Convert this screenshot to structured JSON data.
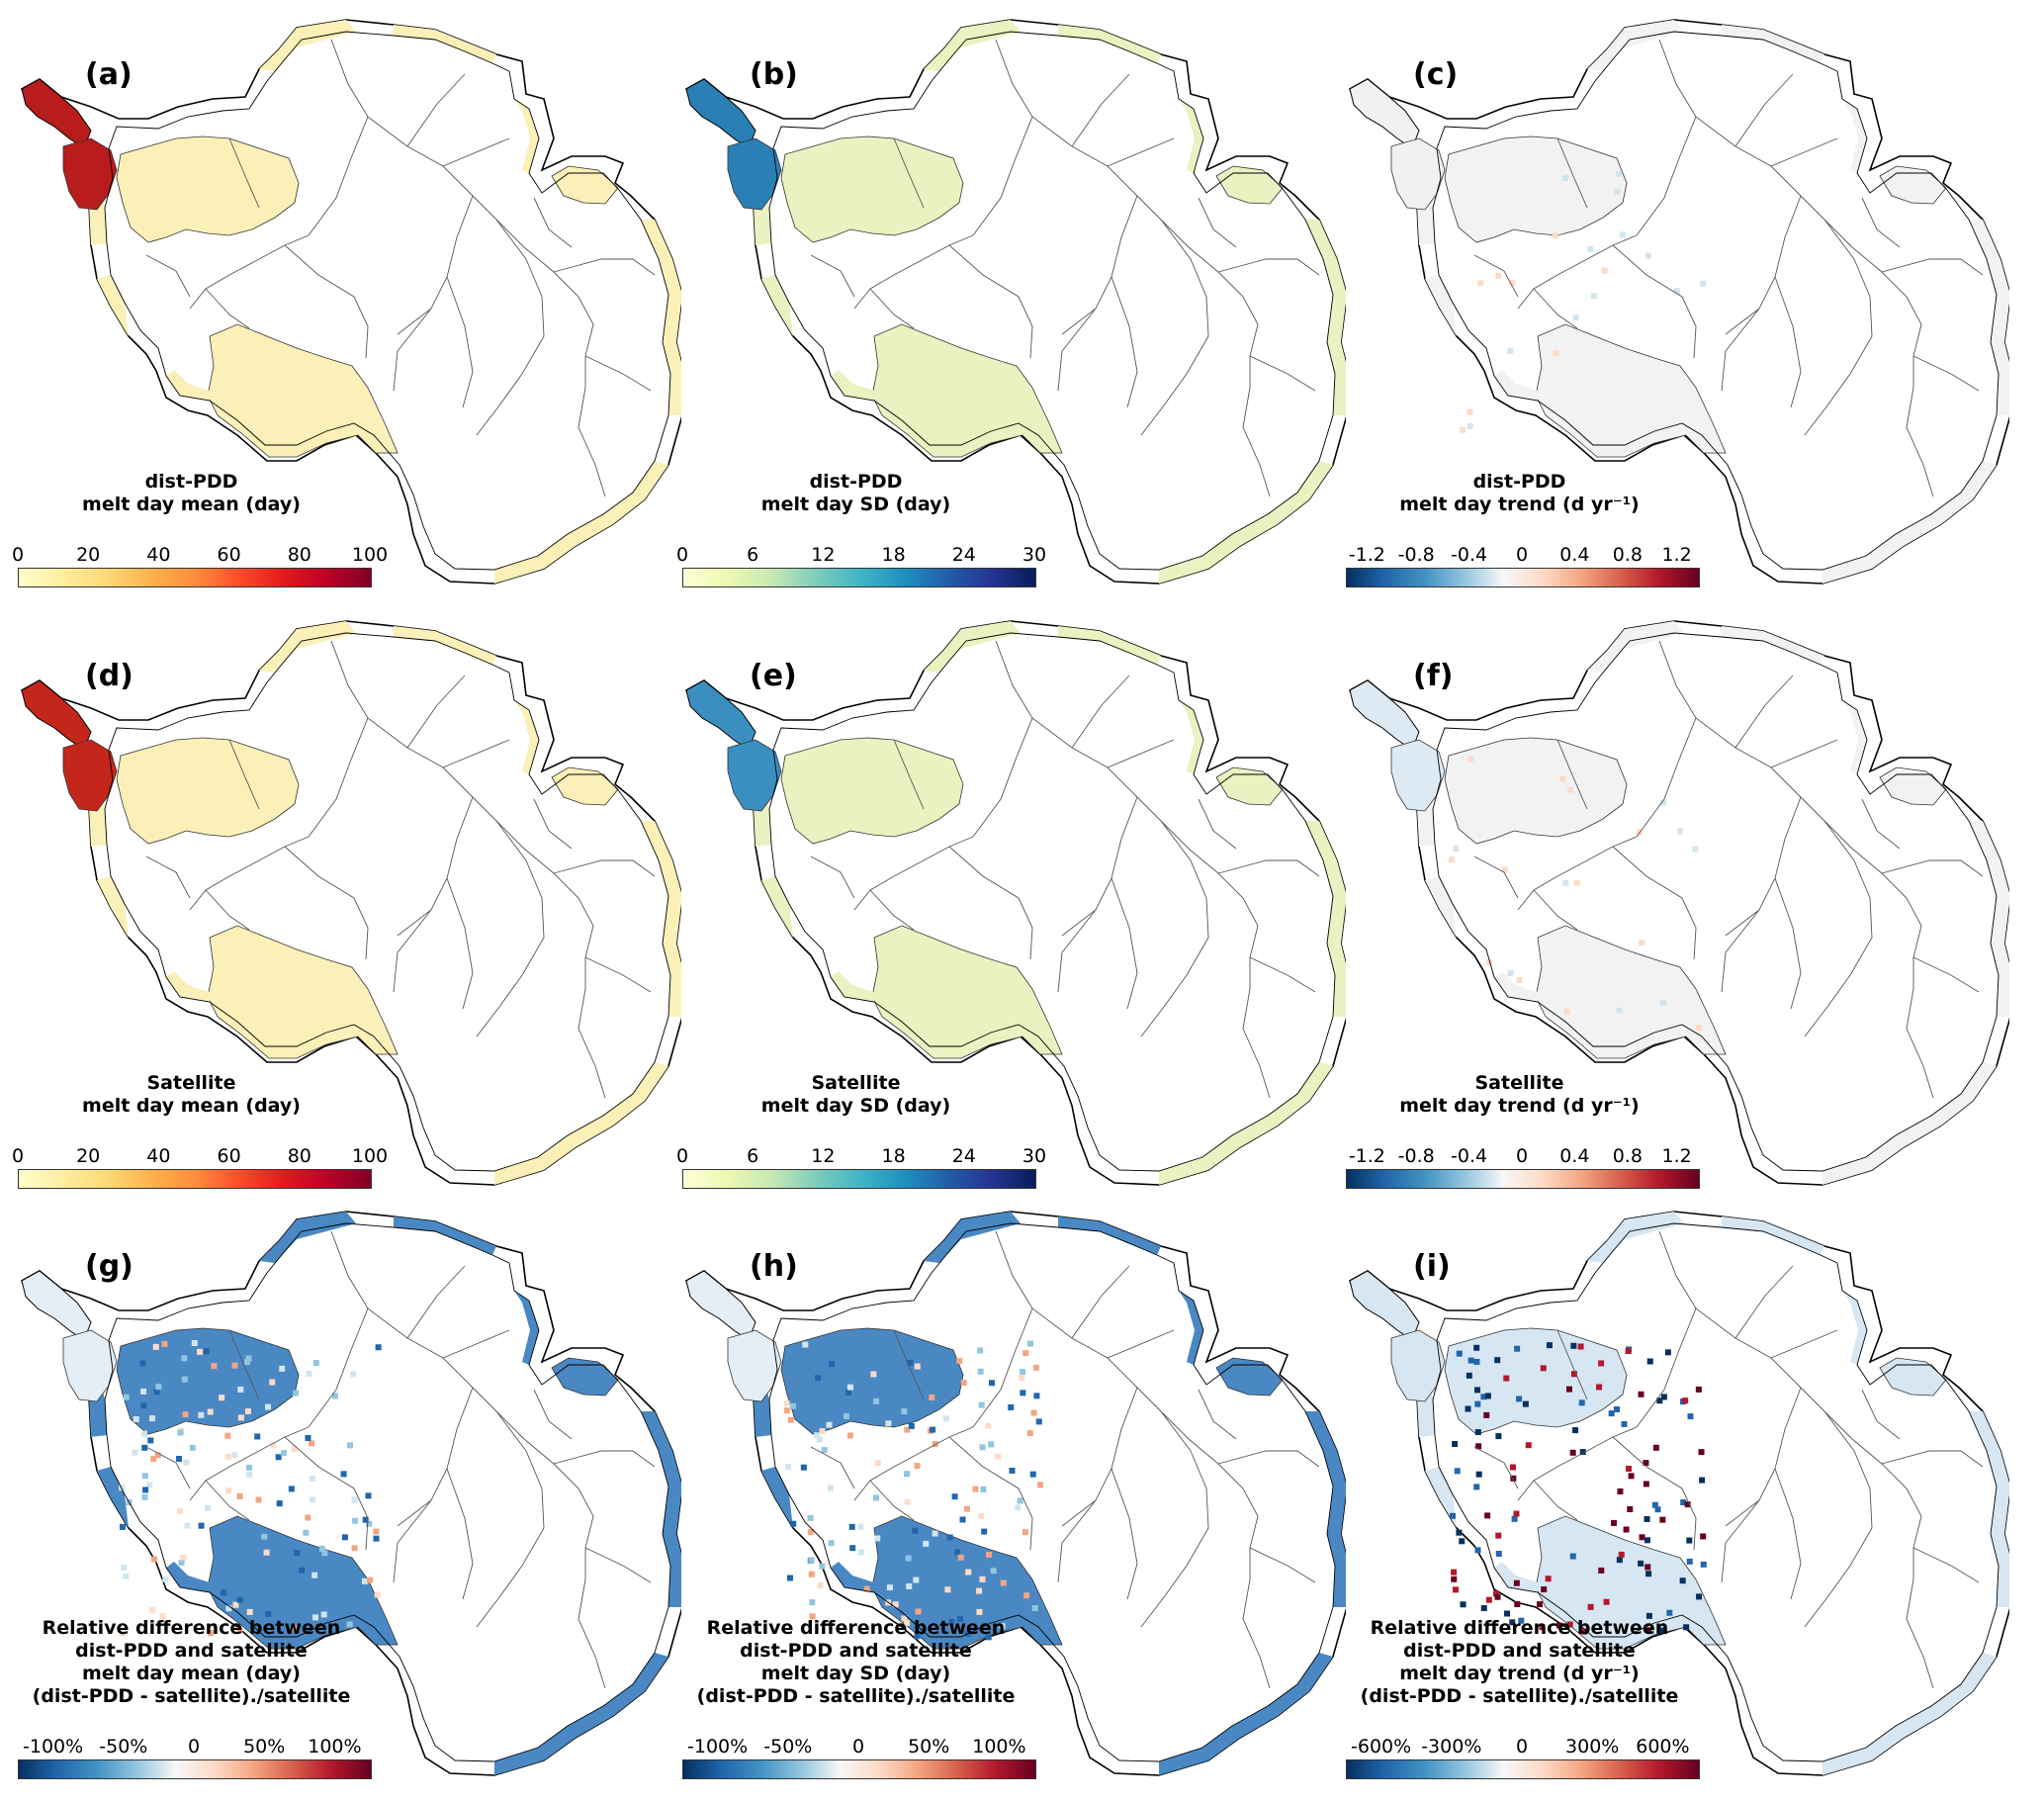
{
  "panels": [
    {
      "id": "a",
      "label": "(a)",
      "title": [
        "dist-PDD",
        "melt day mean (day)"
      ],
      "ticks": [
        "0",
        "20",
        "40",
        "60",
        "80",
        "100"
      ],
      "cmap": "YlOrRd",
      "fill": "#fbf0b8",
      "peninsula": "#b81c1c"
    },
    {
      "id": "b",
      "label": "(b)",
      "title": [
        "dist-PDD",
        "melt day SD (day)"
      ],
      "ticks": [
        "0",
        "6",
        "12",
        "18",
        "24",
        "30"
      ],
      "cmap": "YlGnBu",
      "fill": "#e9f2c0",
      "peninsula": "#2a7fb5"
    },
    {
      "id": "c",
      "label": "(c)",
      "title": [
        "dist-PDD",
        "melt day trend (d yr⁻¹)"
      ],
      "ticks": [
        "-1.2",
        "-0.8",
        "-0.4",
        "0",
        "0.4",
        "0.8",
        "1.2"
      ],
      "cmap": "RdBu_r",
      "fill": "#f2f2f2",
      "peninsula": "#f1f1f1"
    },
    {
      "id": "d",
      "label": "(d)",
      "title": [
        "Satellite",
        "melt day mean (day)"
      ],
      "ticks": [
        "0",
        "20",
        "40",
        "60",
        "80",
        "100"
      ],
      "cmap": "YlOrRd",
      "fill": "#fbf0b8",
      "peninsula": "#c4261c"
    },
    {
      "id": "e",
      "label": "(e)",
      "title": [
        "Satellite",
        "melt day SD (day)"
      ],
      "ticks": [
        "0",
        "6",
        "12",
        "18",
        "24",
        "30"
      ],
      "cmap": "YlGnBu",
      "fill": "#e9f2c0",
      "peninsula": "#3a8fc0"
    },
    {
      "id": "f",
      "label": "(f)",
      "title": [
        "Satellite",
        "melt day trend (d yr⁻¹)"
      ],
      "ticks": [
        "-1.2",
        "-0.8",
        "-0.4",
        "0",
        "0.4",
        "0.8",
        "1.2"
      ],
      "cmap": "RdBu_r",
      "fill": "#f2f2f2",
      "peninsula": "#dde9f3"
    },
    {
      "id": "g",
      "label": "(g)",
      "title": [
        "Relative difference between",
        "dist-PDD and satellite",
        "melt day mean (day)",
        "(dist-PDD - satellite)./satellite"
      ],
      "ticks": [
        "-100%",
        "-50%",
        "0",
        "50%",
        "100%"
      ],
      "cmap": "RdBu_r",
      "fill": "#4a88c4",
      "peninsula": "#e4eef6"
    },
    {
      "id": "h",
      "label": "(h)",
      "title": [
        "Relative difference between",
        "dist-PDD and satellite",
        "melt day SD (day)",
        "(dist-PDD - satellite)./satellite"
      ],
      "ticks": [
        "-100%",
        "-50%",
        "0",
        "50%",
        "100%"
      ],
      "cmap": "RdBu_r",
      "fill": "#4a88c4",
      "peninsula": "#e4eef6"
    },
    {
      "id": "i",
      "label": "(i)",
      "title": [
        "Relative difference between",
        "dist-PDD and satellite",
        "melt day trend (d yr⁻¹)",
        "(dist-PDD - satellite)./satellite"
      ],
      "ticks": [
        "-600%",
        "-300%",
        "0",
        "300%",
        "600%"
      ],
      "cmap": "RdBu_r",
      "fill": "#d6e6f2",
      "peninsula": "#d6e6f2"
    }
  ],
  "colors": {
    "YlOrRd": [
      "#ffffcc",
      "#ffeda0",
      "#fed976",
      "#feb24c",
      "#fd8d3c",
      "#fc4e2a",
      "#e31a1c",
      "#bd0026",
      "#800026"
    ],
    "YlGnBu": [
      "#ffffd9",
      "#edf8b1",
      "#c7e9b4",
      "#7fcdbb",
      "#41b6c4",
      "#1d91c0",
      "#225ea8",
      "#253494",
      "#081d58"
    ],
    "RdBu_r": [
      "#053061",
      "#2166ac",
      "#4393c3",
      "#92c5de",
      "#f7f7f7",
      "#fddbc7",
      "#f4a582",
      "#d6604d",
      "#b2182b",
      "#67001f"
    ]
  }
}
